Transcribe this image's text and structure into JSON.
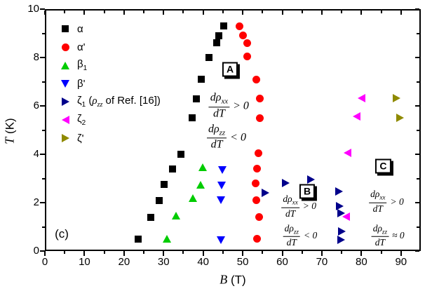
{
  "panel_label": "(c)",
  "axes": {
    "x": {
      "label_var": "B",
      "label_unit": "(T)",
      "min": 0,
      "max": 95,
      "major_ticks": [
        0,
        10,
        20,
        30,
        40,
        50,
        60,
        70,
        80,
        90
      ],
      "minor_ticks": [
        5,
        15,
        25,
        35,
        45,
        55,
        65,
        75,
        85
      ]
    },
    "y": {
      "label_var": "T",
      "label_unit": "(K)",
      "min": 0,
      "max": 10,
      "major_ticks": [
        0,
        2,
        4,
        6,
        8,
        10
      ],
      "minor_ticks": [
        1,
        3,
        5,
        7,
        9
      ]
    }
  },
  "chart_data": {
    "type": "scatter",
    "xlabel": "B (T)",
    "ylabel": "T (K)",
    "xlim": [
      0,
      95
    ],
    "ylim": [
      0,
      10
    ],
    "grid": false,
    "legend_position": "top-left-inside",
    "series": [
      {
        "key": "alpha",
        "base": "α",
        "sub": "",
        "marker": "square",
        "color": "#000000",
        "points": [
          [
            45.2,
            9.3
          ],
          [
            44.0,
            8.9
          ],
          [
            43.4,
            8.6
          ],
          [
            41.5,
            8.0
          ],
          [
            39.5,
            7.1
          ],
          [
            38.3,
            6.3
          ],
          [
            37.2,
            5.5
          ],
          [
            34.4,
            4.0
          ],
          [
            32.3,
            3.4
          ],
          [
            30.1,
            2.75
          ],
          [
            28.9,
            2.1
          ],
          [
            26.8,
            1.4
          ],
          [
            23.6,
            0.5
          ]
        ]
      },
      {
        "key": "alpha-prime",
        "base": "α'",
        "sub": "",
        "marker": "circle",
        "color": "#ff0000",
        "points": [
          [
            49.1,
            9.3
          ],
          [
            50.0,
            8.9
          ],
          [
            51.2,
            8.6
          ],
          [
            51.2,
            8.05
          ],
          [
            53.5,
            7.1
          ],
          [
            54.3,
            6.3
          ],
          [
            54.4,
            5.5
          ],
          [
            53.9,
            4.05
          ],
          [
            53.7,
            3.4
          ],
          [
            53.2,
            2.8
          ],
          [
            53.5,
            2.1
          ],
          [
            54.1,
            1.4
          ],
          [
            53.7,
            0.5
          ]
        ]
      },
      {
        "key": "beta1",
        "base": "β",
        "sub": "1",
        "marker": "triangle-up",
        "color": "#00cc00",
        "points": [
          [
            39.9,
            3.45
          ],
          [
            39.4,
            2.75
          ],
          [
            37.4,
            2.2
          ],
          [
            33.2,
            1.45
          ],
          [
            30.9,
            0.5
          ]
        ]
      },
      {
        "key": "beta-prime",
        "base": "β'",
        "sub": "",
        "marker": "triangle-down",
        "color": "#0000ff",
        "points": [
          [
            44.9,
            3.35
          ],
          [
            44.7,
            2.7
          ],
          [
            44.5,
            2.1
          ],
          [
            44.5,
            0.45
          ]
        ]
      },
      {
        "key": "zeta1",
        "base": "ζ",
        "sub": "1",
        "marker": "triangle-right",
        "color": "#00008b",
        "legend_note": {
          "pre": " (",
          "sym": "ρ",
          "sym_sub": "zz",
          "post": " of Ref. [16])"
        },
        "points": [
          [
            55.7,
            2.4
          ],
          [
            60.8,
            2.8
          ],
          [
            67.2,
            2.95
          ],
          [
            74.3,
            2.45
          ],
          [
            74.6,
            1.85
          ],
          [
            74.8,
            1.55
          ],
          [
            75.0,
            0.8
          ],
          [
            74.8,
            0.45
          ]
        ]
      },
      {
        "key": "zeta2",
        "base": "ζ",
        "sub": "2",
        "marker": "triangle-left",
        "color": "#ff00ff",
        "points": [
          [
            80.0,
            6.3
          ],
          [
            78.7,
            5.55
          ],
          [
            76.4,
            4.05
          ],
          [
            76.1,
            1.4
          ]
        ]
      },
      {
        "key": "zeta-prime",
        "base": "ζ'",
        "sub": "",
        "marker": "triangle-right",
        "color": "#8f8a00",
        "points": [
          [
            88.8,
            6.3
          ],
          [
            89.7,
            5.5
          ]
        ]
      }
    ],
    "region_labels": [
      {
        "label": "A",
        "B": 46.8,
        "T": 7.5
      },
      {
        "label": "B",
        "B": 66.3,
        "T": 2.45
      },
      {
        "label": "C",
        "B": 85.5,
        "T": 3.5
      }
    ],
    "annotations": [
      {
        "region": "A",
        "num_base": "dρ",
        "num_sub": "xx",
        "den": "dT",
        "relation": "> 0",
        "B": 46.5,
        "T": 6.0,
        "size": "lg"
      },
      {
        "region": "A",
        "num_base": "dρ",
        "num_sub": "zz",
        "den": "dT",
        "relation": "< 0",
        "B": 45.9,
        "T": 4.7,
        "size": "lg"
      },
      {
        "region": "B",
        "num_base": "dρ",
        "num_sub": "xx",
        "den": "dT",
        "relation": "> 0",
        "B": 64.2,
        "T": 1.85,
        "size": "sm"
      },
      {
        "region": "B",
        "num_base": "dρ",
        "num_sub": "zz",
        "den": "dT",
        "relation": "< 0",
        "B": 64.5,
        "T": 0.65,
        "size": "sm"
      },
      {
        "region": "C",
        "num_base": "dρ",
        "num_sub": "xx",
        "den": "dT",
        "relation": "> 0",
        "B": 86.3,
        "T": 2.05,
        "size": "sm"
      },
      {
        "region": "C",
        "num_base": "dρ",
        "num_sub": "zz",
        "den": "dT",
        "relation": "≈ 0",
        "B": 86.7,
        "T": 0.65,
        "size": "sm"
      }
    ]
  }
}
